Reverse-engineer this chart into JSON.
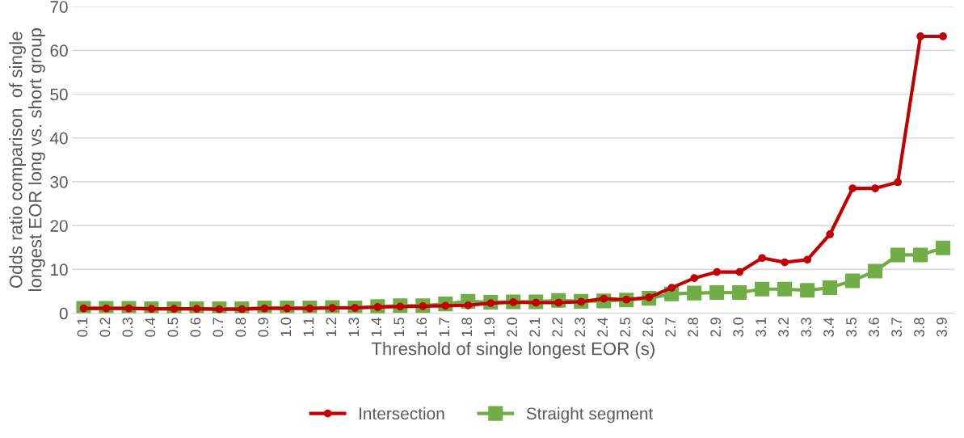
{
  "chart_data": {
    "type": "line",
    "xlabel": "Threshold of single longest EOR (s)",
    "ylabel": "Odds ratio comparison  of single\nlongest EOR long vs. short group",
    "categories": [
      "0.1",
      "0.2",
      "0.3",
      "0.4",
      "0.5",
      "0.6",
      "0.7",
      "0.8",
      "0.9",
      "1.0",
      "1.1",
      "1.2",
      "1.3",
      "1.4",
      "1.5",
      "1.6",
      "1.7",
      "1.8",
      "1.9",
      "2.0",
      "2.1",
      "2.2",
      "2.3",
      "2.4",
      "2.5",
      "2.6",
      "2.7",
      "2.8",
      "2.9",
      "3.0",
      "3.1",
      "3.2",
      "3.3",
      "3.4",
      "3.5",
      "3.6",
      "3.7",
      "3.8",
      "3.9"
    ],
    "series": [
      {
        "name": "Intersection",
        "color": "#c00000",
        "marker": "circle",
        "values": [
          1.1,
          1.1,
          1.1,
          1.0,
          1.0,
          1.0,
          0.9,
          0.9,
          1.1,
          1.1,
          1.1,
          1.2,
          1.2,
          1.4,
          1.5,
          1.6,
          1.7,
          1.8,
          2.3,
          2.5,
          2.4,
          2.4,
          2.6,
          3.3,
          3.1,
          3.6,
          5.8,
          8.0,
          9.4,
          9.4,
          12.6,
          11.6,
          12.2,
          18.0,
          28.5,
          28.5,
          29.9,
          63.2,
          63.2
        ]
      },
      {
        "name": "Straight segment",
        "color": "#70ad47",
        "marker": "square",
        "values": [
          1.1,
          1.1,
          1.1,
          1.0,
          1.0,
          1.0,
          1.0,
          1.0,
          1.2,
          1.2,
          1.2,
          1.3,
          1.2,
          1.5,
          1.7,
          1.7,
          2.1,
          2.7,
          2.5,
          2.6,
          2.6,
          2.9,
          2.7,
          2.8,
          3.0,
          3.4,
          4.4,
          4.6,
          4.7,
          4.7,
          5.5,
          5.5,
          5.2,
          5.8,
          7.4,
          9.6,
          13.3,
          13.3,
          14.9
        ]
      }
    ],
    "ylim": [
      0,
      70
    ],
    "yticks": [
      0,
      10,
      20,
      30,
      40,
      50,
      60,
      70
    ],
    "grid": "y",
    "legend": "bottom",
    "line_style": "solid"
  }
}
